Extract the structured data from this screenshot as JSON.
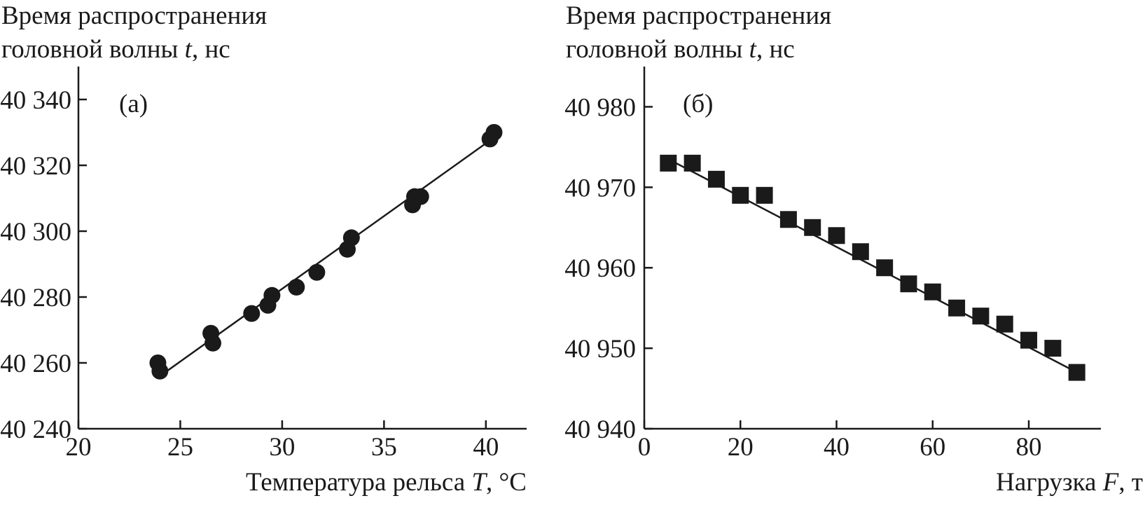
{
  "chart_data": [
    {
      "type": "scatter",
      "panel_label": "(а)",
      "ylabel_line1": "Время распространения",
      "ylabel_line2_pre": "головной волны ",
      "ylabel_var": "t",
      "ylabel_unit": ", нс",
      "xlabel_pre": "Температура рельса ",
      "xlabel_var": "T",
      "xlabel_unit": ", °C",
      "xlim": [
        20,
        42
      ],
      "ylim": [
        40240,
        40350
      ],
      "xticks": [
        20,
        25,
        30,
        35,
        40
      ],
      "xtick_labels": [
        "20",
        "25",
        "30",
        "35",
        "40"
      ],
      "yticks": [
        40240,
        40260,
        40280,
        40300,
        40320,
        40340
      ],
      "ytick_labels": [
        "40 240",
        "40 260",
        "40 280",
        "40 300",
        "40 320",
        "40 340"
      ],
      "marker": "circle",
      "points": [
        {
          "x": 23.9,
          "y": 40260
        },
        {
          "x": 24.0,
          "y": 40257.5
        },
        {
          "x": 26.5,
          "y": 40269
        },
        {
          "x": 26.6,
          "y": 40266
        },
        {
          "x": 28.5,
          "y": 40275
        },
        {
          "x": 29.3,
          "y": 40277.5
        },
        {
          "x": 29.5,
          "y": 40280.5
        },
        {
          "x": 30.7,
          "y": 40283
        },
        {
          "x": 31.7,
          "y": 40287.5
        },
        {
          "x": 33.2,
          "y": 40294.5
        },
        {
          "x": 33.4,
          "y": 40298
        },
        {
          "x": 36.4,
          "y": 40308
        },
        {
          "x": 36.5,
          "y": 40310.5
        },
        {
          "x": 36.8,
          "y": 40310.5
        },
        {
          "x": 40.2,
          "y": 40328
        },
        {
          "x": 40.4,
          "y": 40330
        }
      ],
      "fit_line": [
        {
          "x": 24.0,
          "y": 40256
        },
        {
          "x": 40.3,
          "y": 40328
        }
      ]
    },
    {
      "type": "scatter",
      "panel_label": "(б)",
      "ylabel_line1": "Время распространения",
      "ylabel_line2_pre": "головной волны ",
      "ylabel_var": "t",
      "ylabel_unit": ", нс",
      "xlabel_pre": "Нагрузка ",
      "xlabel_var": "F",
      "xlabel_unit": ", т",
      "xlim": [
        0,
        95
      ],
      "ylim": [
        40940,
        40985
      ],
      "xticks": [
        0,
        20,
        40,
        60,
        80
      ],
      "xtick_labels": [
        "0",
        "20",
        "40",
        "60",
        "80"
      ],
      "yticks": [
        40940,
        40950,
        40960,
        40970,
        40980
      ],
      "ytick_labels": [
        "40 940",
        "40 950",
        "40 960",
        "40 970",
        "40 980"
      ],
      "marker": "square",
      "points": [
        {
          "x": 5,
          "y": 40973
        },
        {
          "x": 10,
          "y": 40973
        },
        {
          "x": 15,
          "y": 40971
        },
        {
          "x": 20,
          "y": 40969
        },
        {
          "x": 25,
          "y": 40969
        },
        {
          "x": 30,
          "y": 40966
        },
        {
          "x": 35,
          "y": 40965
        },
        {
          "x": 40,
          "y": 40964
        },
        {
          "x": 45,
          "y": 40962
        },
        {
          "x": 50,
          "y": 40960
        },
        {
          "x": 55,
          "y": 40958
        },
        {
          "x": 60,
          "y": 40957
        },
        {
          "x": 65,
          "y": 40955
        },
        {
          "x": 70,
          "y": 40954
        },
        {
          "x": 75,
          "y": 40953
        },
        {
          "x": 80,
          "y": 40951
        },
        {
          "x": 85,
          "y": 40950
        },
        {
          "x": 90,
          "y": 40947
        }
      ],
      "fit_line": [
        {
          "x": 5,
          "y": 40973.5
        },
        {
          "x": 90,
          "y": 40947
        }
      ]
    }
  ]
}
